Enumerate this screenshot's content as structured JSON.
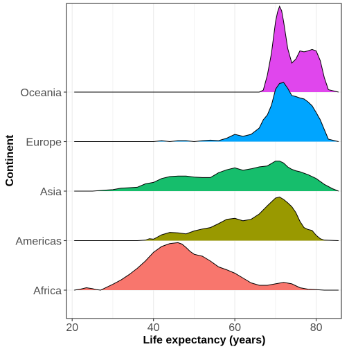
{
  "chart_data": {
    "type": "ridgeline",
    "xlabel": "Life expectancy (years)",
    "ylabel": "Continent",
    "xlim": [
      18.6,
      86.2
    ],
    "x_ticks": [
      20,
      40,
      60,
      80
    ],
    "grid": true,
    "series": [
      {
        "name": "Africa",
        "color": "#F8766D",
        "x": [
          20.5,
          22,
          23.5,
          25,
          26,
          27,
          28,
          30,
          32,
          34,
          36,
          38,
          40,
          42,
          44,
          46,
          47,
          48,
          49,
          50,
          52,
          54,
          56,
          58,
          60,
          62,
          64,
          66,
          68,
          70,
          72,
          74,
          76,
          78,
          80,
          82,
          85.5
        ],
        "density": [
          0,
          0.02,
          0.05,
          0.03,
          0.01,
          0,
          0.04,
          0.12,
          0.21,
          0.32,
          0.45,
          0.6,
          0.78,
          0.9,
          0.96,
          0.98,
          0.95,
          0.88,
          0.8,
          0.74,
          0.7,
          0.6,
          0.48,
          0.42,
          0.35,
          0.25,
          0.15,
          0.1,
          0.1,
          0.13,
          0.16,
          0.13,
          0.05,
          0.02,
          0.01,
          0,
          0
        ]
      },
      {
        "name": "Americas",
        "color": "#999900",
        "x": [
          20.5,
          30,
          36,
          38,
          39,
          40,
          42,
          44,
          46,
          48,
          50,
          52,
          54,
          56,
          58,
          60,
          62,
          64,
          66,
          68,
          70,
          71,
          72,
          73,
          74,
          75,
          76,
          77,
          78,
          79,
          80,
          81,
          82,
          85.5
        ],
        "density": [
          0,
          0,
          0,
          0.01,
          0.04,
          0.03,
          0.12,
          0.17,
          0.16,
          0.14,
          0.2,
          0.24,
          0.27,
          0.35,
          0.44,
          0.46,
          0.41,
          0.44,
          0.55,
          0.72,
          0.88,
          0.9,
          0.85,
          0.78,
          0.7,
          0.58,
          0.4,
          0.27,
          0.23,
          0.21,
          0.11,
          0.04,
          0.01,
          0
        ]
      },
      {
        "name": "Asia",
        "color": "#16BE6C",
        "x": [
          20.5,
          25,
          28,
          30,
          32,
          34,
          36,
          38,
          40,
          42,
          44,
          46,
          48,
          50,
          52,
          54,
          56,
          58,
          60,
          62,
          64,
          66,
          68,
          70,
          71,
          72,
          73,
          74,
          75,
          76,
          78,
          80,
          82,
          84,
          85.5
        ],
        "density": [
          0,
          0,
          0.02,
          0.03,
          0.06,
          0.07,
          0.08,
          0.15,
          0.18,
          0.26,
          0.3,
          0.31,
          0.31,
          0.29,
          0.28,
          0.28,
          0.38,
          0.44,
          0.48,
          0.43,
          0.46,
          0.5,
          0.52,
          0.62,
          0.62,
          0.58,
          0.5,
          0.45,
          0.42,
          0.4,
          0.34,
          0.26,
          0.14,
          0.05,
          0
        ]
      },
      {
        "name": "Europe",
        "color": "#00A5FF",
        "x": [
          20.5,
          40,
          42,
          44,
          46,
          48,
          50,
          52,
          54,
          56,
          58,
          60,
          62,
          64,
          66,
          67,
          68,
          69,
          70,
          71,
          72,
          73,
          74,
          75,
          76,
          77,
          78,
          79,
          80,
          81,
          82,
          83,
          85.5
        ],
        "density": [
          0,
          0,
          0.02,
          0,
          0.02,
          0.02,
          0,
          0.02,
          0.03,
          0.02,
          0.07,
          0.15,
          0.11,
          0.15,
          0.28,
          0.45,
          0.55,
          0.75,
          1.08,
          1.2,
          1.22,
          1.1,
          0.95,
          0.93,
          0.9,
          0.88,
          0.82,
          0.74,
          0.6,
          0.45,
          0.25,
          0.05,
          0
        ]
      },
      {
        "name": "Oceania",
        "color": "#E046ED",
        "x": [
          20.5,
          66,
          67,
          68,
          69,
          70,
          70.5,
          71,
          71.5,
          72,
          73,
          74,
          75,
          76,
          77,
          78,
          79,
          80,
          81,
          82,
          83,
          85.5
        ],
        "density": [
          0,
          0,
          0.04,
          0.35,
          0.8,
          1.45,
          1.65,
          1.77,
          1.68,
          1.45,
          0.9,
          0.6,
          0.68,
          0.85,
          0.83,
          0.85,
          0.88,
          0.85,
          0.65,
          0.3,
          0.05,
          0
        ]
      }
    ]
  }
}
